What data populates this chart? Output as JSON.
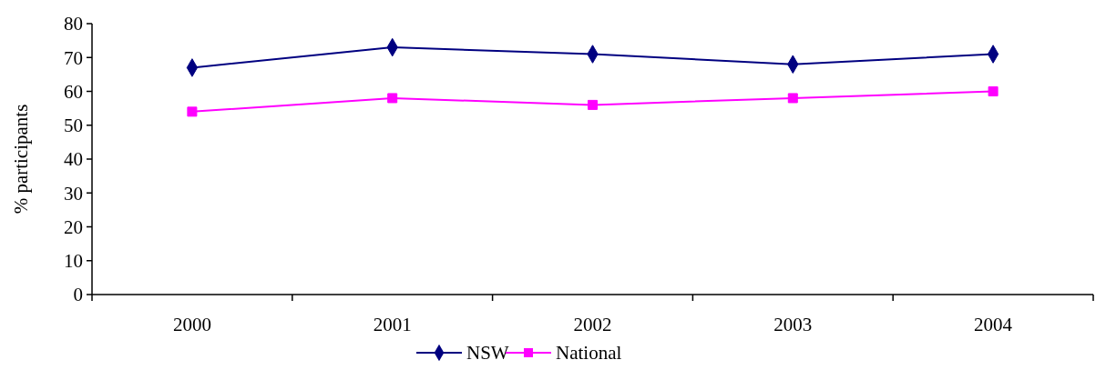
{
  "chart_data": {
    "type": "line",
    "ylabel": "% participants",
    "categories": [
      "2000",
      "2001",
      "2002",
      "2003",
      "2004"
    ],
    "series": [
      {
        "name": "NSW",
        "color": "#000080",
        "values": [
          67,
          73,
          71,
          68,
          71
        ],
        "marker": "diamond"
      },
      {
        "name": "National",
        "color": "#ff00ff",
        "values": [
          54,
          58,
          56,
          58,
          60
        ],
        "marker": "square"
      }
    ],
    "ylim": [
      0,
      80
    ],
    "yticks": [
      0,
      10,
      20,
      30,
      40,
      50,
      60,
      70,
      80
    ],
    "grid": false,
    "legend": "bottom",
    "line_style": "solid"
  }
}
